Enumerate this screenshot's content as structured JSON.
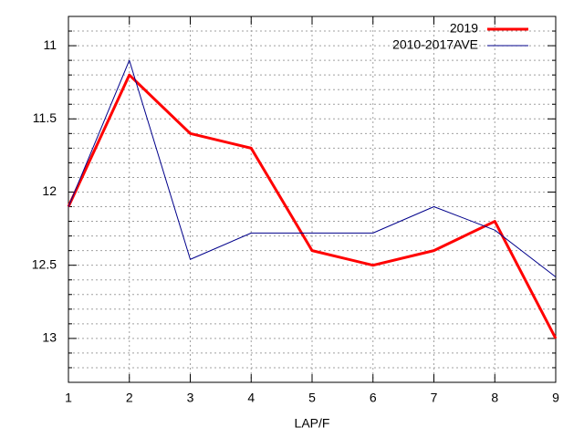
{
  "chart_data": {
    "type": "line",
    "x_label": "LAP/F",
    "x": [
      1,
      2,
      3,
      4,
      5,
      6,
      7,
      8,
      9
    ],
    "series": [
      {
        "name": "2019",
        "color": "#ff0000",
        "width": 3,
        "values": [
          12.1,
          11.2,
          11.6,
          11.7,
          12.4,
          12.5,
          12.4,
          12.2,
          13.0
        ]
      },
      {
        "name": "2010-2017AVE",
        "color": "#00008b",
        "width": 1,
        "values": [
          12.1,
          11.1,
          12.46,
          12.28,
          12.28,
          12.28,
          12.1,
          12.26,
          12.58
        ]
      }
    ],
    "xlim": [
      1,
      9
    ],
    "xticks": [
      1,
      2,
      3,
      4,
      5,
      6,
      7,
      8,
      9
    ],
    "ylim": [
      10.8,
      13.3
    ],
    "yticks": [
      11,
      11.5,
      12,
      12.5,
      13
    ],
    "y_reversed": true,
    "grid": true,
    "minor_per_major": 5,
    "legend": "top-right"
  }
}
